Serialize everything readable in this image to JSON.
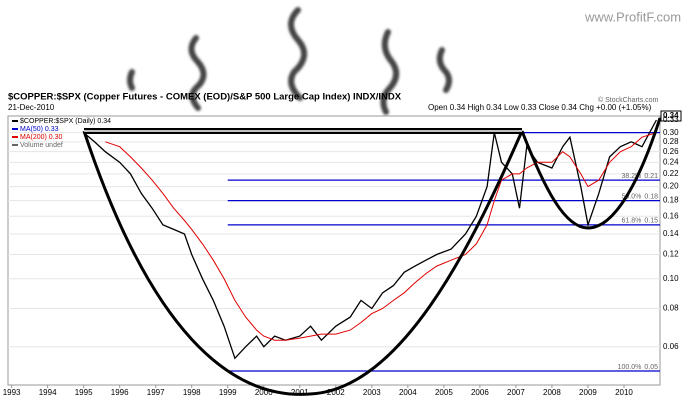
{
  "chart_data": {
    "type": "line",
    "site": "www.ProfitF.com",
    "title": "$COPPER:$SPX (Copper Futures - COMEX (EOD)/S&P 500 Large Cap Index) INDX/INDX",
    "date": "21-Dec-2010",
    "quote": "Open 0.34 High 0.34 Low 0.33 Close 0.34 Chg +0.00 (+1.05%)",
    "credit": "© StockCharts.com",
    "legend": [
      {
        "text": "$COPPER:$SPX (Daily) 0.34",
        "color": "#000000"
      },
      {
        "text": "MA(50) 0.33",
        "color": "#0000cc"
      },
      {
        "text": "MA(200) 0.30",
        "color": "#e00000"
      },
      {
        "text": "Volume undef",
        "color": "#666666"
      }
    ],
    "log_y": true,
    "xlim": [
      1992.9,
      2011.0
    ],
    "xticks": [
      1993,
      1994,
      1995,
      1996,
      1997,
      1998,
      1999,
      2000,
      2001,
      2002,
      2003,
      2004,
      2005,
      2006,
      2007,
      2008,
      2009,
      2010
    ],
    "ylim": [
      0.045,
      0.34
    ],
    "yticks": [
      0.06,
      0.08,
      {
        "value": 0.1,
        "label": "0.10"
      },
      0.12,
      0.14,
      0.16,
      0.18,
      {
        "value": 0.2,
        "label": "0.20"
      },
      0.22,
      0.24,
      0.26,
      0.28,
      {
        "value": 0.3,
        "label": "0.30"
      }
    ],
    "axis_markers": [
      0.34,
      0.33
    ],
    "fib_levels": [
      {
        "label": "38.2%",
        "value": 0.21
      },
      {
        "label": "50.0%",
        "value": 0.18
      },
      {
        "label": "61.8%",
        "value": 0.15
      },
      {
        "label": "100.0%",
        "value": 0.05
      }
    ],
    "fib_start": 1999.0,
    "x": [
      1995.0,
      1995.3,
      1995.6,
      1996.0,
      1996.3,
      1996.6,
      1996.9,
      1997.2,
      1997.5,
      1997.8,
      1998.0,
      1998.3,
      1998.6,
      1998.9,
      1999.2,
      1999.5,
      1999.8,
      2000.0,
      2000.3,
      2000.6,
      2001.0,
      2001.3,
      2001.6,
      2002.0,
      2002.4,
      2002.7,
      2003.0,
      2003.3,
      2003.6,
      2003.9,
      2004.2,
      2004.5,
      2004.8,
      2005.2,
      2005.6,
      2005.9,
      2006.2,
      2006.4,
      2006.6,
      2006.9,
      2007.1,
      2007.3,
      2007.6,
      2008.0,
      2008.3,
      2008.5,
      2008.8,
      2009.0,
      2009.3,
      2009.6,
      2009.9,
      2010.2,
      2010.5,
      2010.9
    ],
    "series": [
      {
        "color": "#000000",
        "values": [
          0.3,
          0.28,
          0.26,
          0.24,
          0.22,
          0.19,
          0.17,
          0.15,
          0.145,
          0.14,
          0.12,
          0.1,
          0.085,
          0.07,
          0.055,
          0.06,
          0.065,
          0.06,
          0.065,
          0.063,
          0.065,
          0.07,
          0.063,
          0.07,
          0.075,
          0.085,
          0.08,
          0.09,
          0.095,
          0.105,
          0.11,
          0.115,
          0.12,
          0.125,
          0.14,
          0.16,
          0.2,
          0.3,
          0.24,
          0.22,
          0.17,
          0.27,
          0.24,
          0.23,
          0.27,
          0.29,
          0.2,
          0.15,
          0.19,
          0.25,
          0.27,
          0.28,
          0.27,
          0.33
        ]
      },
      {
        "color": "#e00000",
        "values": [
          null,
          null,
          0.28,
          0.27,
          0.25,
          0.23,
          0.21,
          0.19,
          0.17,
          0.155,
          0.145,
          0.13,
          0.115,
          0.1,
          0.085,
          0.075,
          0.068,
          0.065,
          0.063,
          0.063,
          0.064,
          0.065,
          0.066,
          0.066,
          0.068,
          0.072,
          0.077,
          0.08,
          0.085,
          0.09,
          0.097,
          0.104,
          0.11,
          0.115,
          0.12,
          0.13,
          0.15,
          0.18,
          0.21,
          0.22,
          0.22,
          0.23,
          0.24,
          0.24,
          0.26,
          0.25,
          0.22,
          0.2,
          0.21,
          0.24,
          0.26,
          0.27,
          0.29,
          0.3
        ]
      }
    ]
  }
}
